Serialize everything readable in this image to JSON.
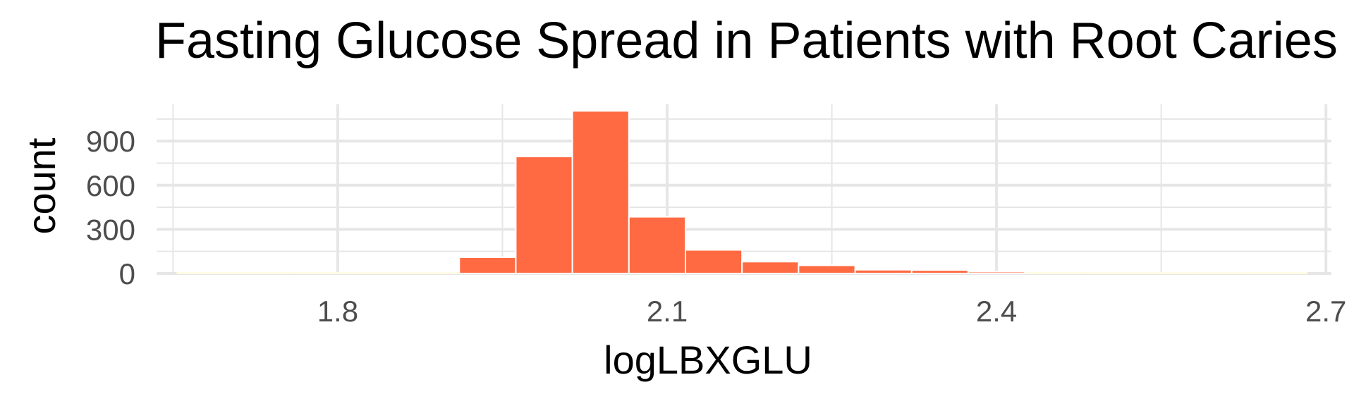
{
  "chart_data": {
    "type": "bar",
    "title": "Fasting Glucose Spread in Patients with Root Caries",
    "xlabel": "logLBXGLU",
    "ylabel": "count",
    "xlim": [
      1.635,
      2.705
    ],
    "ylim": [
      -5,
      1150
    ],
    "x_ticks": [
      1.8,
      2.1,
      2.4,
      2.7
    ],
    "x_tick_labels": [
      "1.8",
      "2.1",
      "2.4",
      "2.7"
    ],
    "y_ticks": [
      0,
      300,
      600,
      900
    ],
    "y_tick_labels": [
      "0",
      "300",
      "600",
      "900"
    ],
    "bin_width": 0.0515,
    "bins": [
      {
        "x0": 1.6532,
        "value": 3
      },
      {
        "x0": 1.7047,
        "value": 3
      },
      {
        "x0": 1.7562,
        "value": 3
      },
      {
        "x0": 1.8077,
        "value": 2
      },
      {
        "x0": 1.8592,
        "value": 2
      },
      {
        "x0": 1.9107,
        "value": 110
      },
      {
        "x0": 1.9622,
        "value": 795
      },
      {
        "x0": 2.0137,
        "value": 1105
      },
      {
        "x0": 2.0652,
        "value": 385
      },
      {
        "x0": 2.1167,
        "value": 160
      },
      {
        "x0": 2.1682,
        "value": 80
      },
      {
        "x0": 2.2197,
        "value": 55
      },
      {
        "x0": 2.2712,
        "value": 25
      },
      {
        "x0": 2.3227,
        "value": 23
      },
      {
        "x0": 2.3742,
        "value": 12
      },
      {
        "x0": 2.4257,
        "value": 3
      },
      {
        "x0": 2.4772,
        "value": 2
      },
      {
        "x0": 2.5287,
        "value": 2
      },
      {
        "x0": 2.5802,
        "value": 2
      },
      {
        "x0": 2.6317,
        "value": 3
      }
    ],
    "grid": true,
    "fill_color": "#ff6a42",
    "low_count_fill": "#fffbe6",
    "grid_color": "#e6e6e6",
    "legend": "none"
  }
}
